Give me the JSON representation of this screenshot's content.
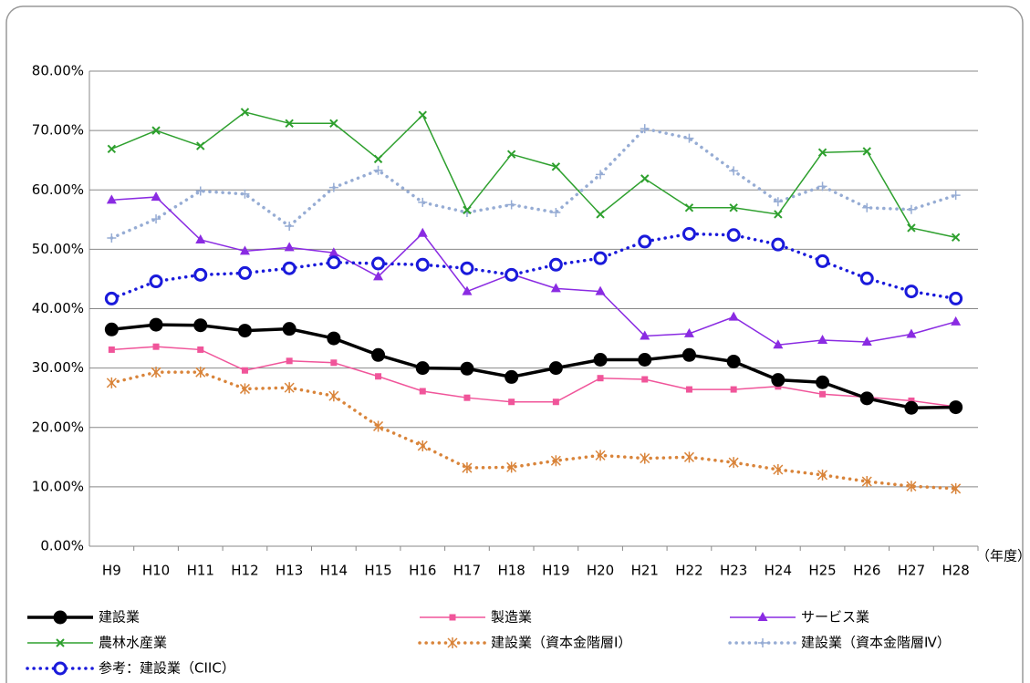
{
  "chart_data": {
    "type": "line",
    "x_label": "（年度）",
    "categories": [
      "H9",
      "H10",
      "H11",
      "H12",
      "H13",
      "H14",
      "H15",
      "H16",
      "H17",
      "H18",
      "H19",
      "H20",
      "H21",
      "H22",
      "H23",
      "H24",
      "H25",
      "H26",
      "H27",
      "H28"
    ],
    "ylim": [
      0,
      80
    ],
    "yticks": [
      {
        "value": 0,
        "label": "0.00%"
      },
      {
        "value": 10,
        "label": "10.00%"
      },
      {
        "value": 20,
        "label": "20.00%"
      },
      {
        "value": 30,
        "label": "30.00%"
      },
      {
        "value": 40,
        "label": "40.00%"
      },
      {
        "value": 50,
        "label": "50.00%"
      },
      {
        "value": 60,
        "label": "60.00%"
      },
      {
        "value": 70,
        "label": "70.00%"
      },
      {
        "value": 80,
        "label": "80.00%"
      }
    ],
    "grid": true,
    "series": [
      {
        "name": "建設業",
        "color": "#000000",
        "marker": "circle",
        "dash": "solid",
        "values": [
          36.5,
          37.3,
          37.2,
          36.3,
          36.6,
          35.0,
          32.2,
          30.0,
          29.9,
          28.5,
          30.0,
          31.4,
          31.4,
          32.2,
          31.1,
          28.0,
          27.6,
          24.9,
          23.3,
          23.4
        ]
      },
      {
        "name": "製造業",
        "color": "#f0559a",
        "marker": "square",
        "dash": "solid",
        "values": [
          33.1,
          33.6,
          33.1,
          29.6,
          31.2,
          30.9,
          28.6,
          26.1,
          25.0,
          24.3,
          24.3,
          28.3,
          28.1,
          26.4,
          26.4,
          26.9,
          25.6,
          25.1,
          24.5,
          23.5
        ]
      },
      {
        "name": "サービス業",
        "color": "#8a2be2",
        "marker": "triangle",
        "dash": "solid",
        "values": [
          58.3,
          58.8,
          51.6,
          49.7,
          50.3,
          49.4,
          45.4,
          52.7,
          42.9,
          45.8,
          43.4,
          42.9,
          35.4,
          35.8,
          38.6,
          33.9,
          34.7,
          34.4,
          35.7,
          37.8
        ]
      },
      {
        "name": "農林水産業",
        "color": "#2ea02e",
        "marker": "x",
        "dash": "solid",
        "values": [
          66.9,
          70.0,
          67.4,
          73.1,
          71.2,
          71.2,
          65.2,
          72.6,
          56.6,
          66.0,
          63.9,
          55.9,
          61.9,
          57.0,
          57.0,
          55.9,
          66.3,
          66.5,
          53.6,
          52.0
        ]
      },
      {
        "name": "建設業（資本金階層Ⅰ）",
        "color": "#d9843a",
        "marker": "star",
        "dash": "dotted",
        "values": [
          27.5,
          29.3,
          29.3,
          26.5,
          26.7,
          25.3,
          20.2,
          16.9,
          13.2,
          13.3,
          14.4,
          15.3,
          14.8,
          15.0,
          14.1,
          12.9,
          12.0,
          10.9,
          10.1,
          9.7
        ]
      },
      {
        "name": "建設業（資本金階層Ⅳ）",
        "color": "#96acd4",
        "marker": "plus",
        "dash": "dotted",
        "values": [
          51.9,
          55.1,
          59.8,
          59.3,
          53.9,
          60.4,
          63.3,
          57.9,
          56.2,
          57.5,
          56.2,
          62.6,
          70.3,
          68.7,
          63.2,
          58.0,
          60.6,
          57.0,
          56.7,
          59.1
        ]
      },
      {
        "name": "参考：建設業（CIIC）",
        "color": "#1a1adb",
        "marker": "open-circle",
        "dash": "dotted",
        "values": [
          41.7,
          44.6,
          45.7,
          46.0,
          46.8,
          47.8,
          47.6,
          47.4,
          46.8,
          45.7,
          47.4,
          48.5,
          51.3,
          52.6,
          52.4,
          50.8,
          48.0,
          45.1,
          42.9,
          41.7
        ]
      }
    ]
  }
}
